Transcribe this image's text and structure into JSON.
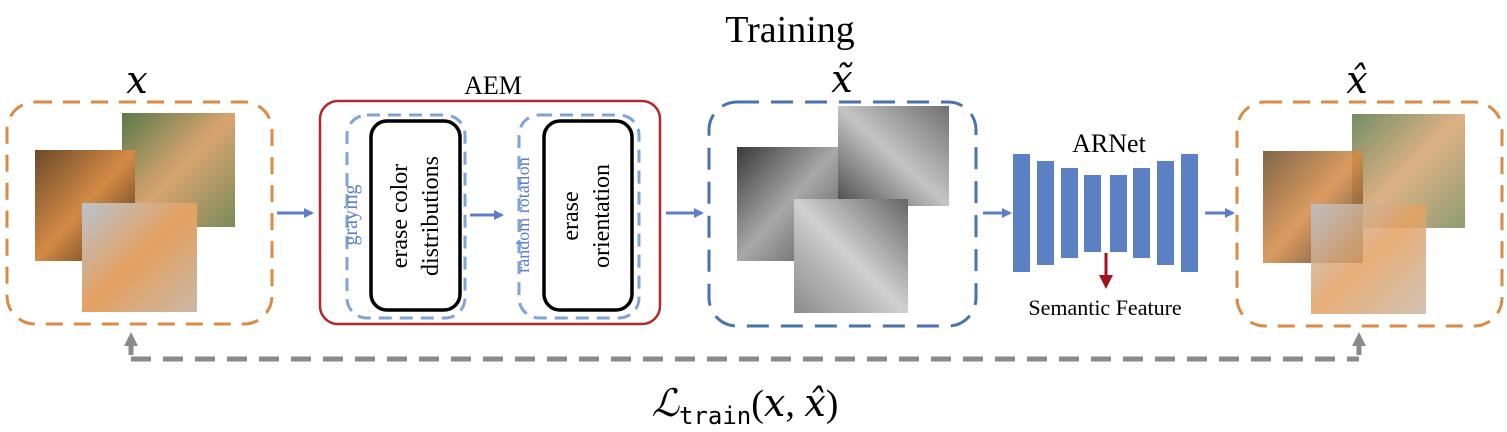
{
  "title": "Training",
  "input": {
    "symbol": "x"
  },
  "augmented": {
    "symbol": "x̃"
  },
  "output": {
    "symbol": "x̂"
  },
  "aem": {
    "label": "AEM",
    "steps": [
      {
        "side_label": "graying",
        "box_lines": [
          "erase color",
          "distributions"
        ]
      },
      {
        "side_label": "random rotation",
        "box_lines": [
          "erase",
          "orientation"
        ]
      }
    ]
  },
  "arnet": {
    "label": "ARNet",
    "feature_label": "Semantic Feature"
  },
  "loss": {
    "prefix": "ℒ",
    "subscript": "train",
    "args_open": "(",
    "arg1": "x",
    "comma": ", ",
    "arg2": "x̂",
    "args_close": ")"
  },
  "colors": {
    "orange_box": "#d98a45",
    "blue_box": "#4a72ae",
    "light_blue_box": "#7ea4d6",
    "aem_border": "#b3282d",
    "arrow_blue": "#5b7fc7",
    "arnet_bar": "#5b80c4",
    "feature_arrow": "#a0141e",
    "loss_line": "#8a8a8a",
    "side_label_text": "#5b7fc7"
  },
  "icons": [
    "cat-photo",
    "grayscale-cat-photo"
  ]
}
